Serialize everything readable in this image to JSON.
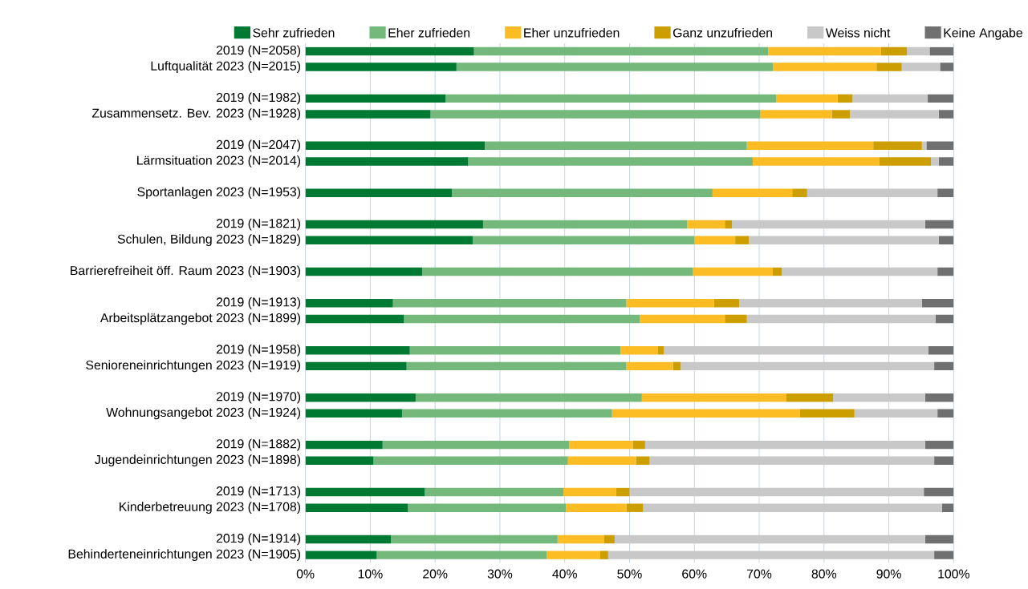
{
  "chart_data": {
    "type": "bar",
    "orientation": "horizontal",
    "stacked": true,
    "categories": [
      "2019 (N=2058)",
      "Luftqualität 2023 (N=2015)",
      null,
      "2019 (N=1982)",
      "Zusammensetz. Bev. 2023 (N=1928)",
      null,
      "2019 (N=2047)",
      "Lärmsituation 2023 (N=2014)",
      null,
      "Sportanlagen 2023 (N=1953)",
      null,
      "2019 (N=1821)",
      "Schulen, Bildung 2023 (N=1829)",
      null,
      "Barrierefreiheit öff. Raum 2023 (N=1903)",
      null,
      "2019 (N=1913)",
      "Arbeitsplätzangebot 2023 (N=1899)",
      null,
      "2019 (N=1958)",
      "Senioreneinrichtungen 2023 (N=1919)",
      null,
      "2019 (N=1970)",
      "Wohnungsangebot 2023 (N=1924)",
      null,
      "2019 (N=1882)",
      "Jugendeinrichtungen 2023 (N=1898)",
      null,
      "2019 (N=1713)",
      "Kinderbetreuung 2023 (N=1708)",
      null,
      "2019 (N=1914)",
      "Behinderteneinrichtungen 2023 (N=1905)"
    ],
    "series": [
      {
        "name": "Sehr zufrieden",
        "color": "#007a33",
        "values": [
          26.0,
          23.3,
          null,
          21.6,
          19.3,
          null,
          27.7,
          25.1,
          null,
          22.6,
          null,
          27.4,
          25.8,
          null,
          18.0,
          null,
          13.5,
          15.2,
          null,
          16.1,
          15.6,
          null,
          17.0,
          14.9,
          null,
          11.9,
          10.5,
          null,
          18.4,
          15.8,
          null,
          13.2,
          11.0
        ]
      },
      {
        "name": "Eher zufrieden",
        "color": "#74b97b",
        "values": [
          45.4,
          48.8,
          null,
          51.0,
          50.9,
          null,
          40.4,
          43.9,
          null,
          40.2,
          null,
          31.5,
          34.2,
          null,
          41.8,
          null,
          36.0,
          36.4,
          null,
          32.5,
          33.9,
          null,
          34.9,
          32.4,
          null,
          28.8,
          30.0,
          null,
          21.4,
          24.4,
          null,
          25.7,
          26.2
        ]
      },
      {
        "name": "Eher unzufrieden",
        "color": "#fbbd23",
        "values": [
          17.4,
          16.0,
          null,
          9.5,
          11.0,
          null,
          19.5,
          19.5,
          null,
          12.3,
          null,
          5.8,
          6.3,
          null,
          12.3,
          null,
          13.5,
          13.1,
          null,
          5.8,
          7.2,
          null,
          22.3,
          29.0,
          null,
          9.8,
          10.5,
          null,
          8.1,
          9.3,
          null,
          7.2,
          8.2
        ]
      },
      {
        "name": "Ganz unzufrieden",
        "color": "#cc9e00",
        "values": [
          4.0,
          3.9,
          null,
          2.3,
          2.8,
          null,
          7.5,
          8.0,
          null,
          2.3,
          null,
          1.1,
          2.1,
          null,
          1.4,
          null,
          3.9,
          3.4,
          null,
          0.9,
          1.2,
          null,
          7.2,
          8.4,
          null,
          1.9,
          2.1,
          null,
          2.1,
          2.6,
          null,
          1.6,
          1.3
        ]
      },
      {
        "name": "Weiss nicht",
        "color": "#c8c8c8",
        "values": [
          3.5,
          5.9,
          null,
          11.6,
          13.7,
          null,
          0.7,
          1.2,
          null,
          20.1,
          null,
          29.8,
          29.3,
          null,
          24.0,
          null,
          28.2,
          29.1,
          null,
          40.8,
          39.1,
          null,
          14.2,
          12.8,
          null,
          43.2,
          43.9,
          null,
          45.4,
          46.1,
          null,
          47.9,
          50.3
        ]
      },
      {
        "name": "Keine Angabe",
        "color": "#707070",
        "values": [
          3.7,
          2.1,
          null,
          4.0,
          2.3,
          null,
          4.2,
          2.3,
          null,
          2.5,
          null,
          4.4,
          2.3,
          null,
          2.5,
          null,
          4.9,
          2.8,
          null,
          3.9,
          3.0,
          null,
          4.4,
          2.5,
          null,
          4.4,
          3.0,
          null,
          4.6,
          1.8,
          null,
          4.4,
          3.0
        ]
      }
    ],
    "xlim": [
      0,
      100
    ],
    "xticks": [
      {
        "value": 0,
        "label": "0%"
      },
      {
        "value": 10,
        "label": "10%"
      },
      {
        "value": 20,
        "label": "20%"
      },
      {
        "value": 30,
        "label": "30%"
      },
      {
        "value": 40,
        "label": "40%"
      },
      {
        "value": 50,
        "label": "50%"
      },
      {
        "value": 60,
        "label": "60%"
      },
      {
        "value": 70,
        "label": "70%"
      },
      {
        "value": 80,
        "label": "80%"
      },
      {
        "value": 90,
        "label": "90%"
      },
      {
        "value": 100,
        "label": "100%"
      }
    ],
    "grid": "x",
    "legend": "top"
  }
}
